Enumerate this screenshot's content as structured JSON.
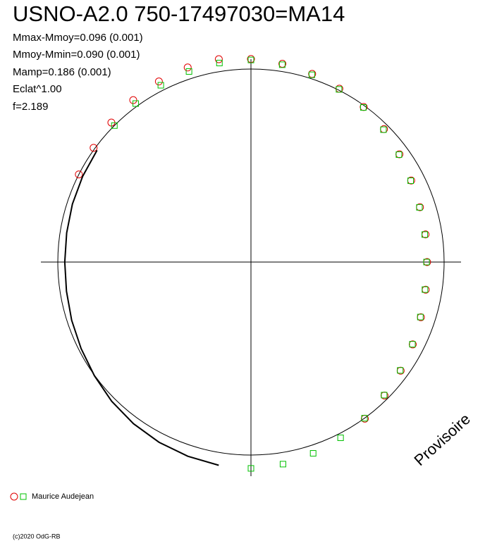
{
  "chart_data": {
    "type": "polar-phase",
    "title": "USNO-A2.0 750-17497030=MA14",
    "stats": [
      "Mmax-Mmoy=0.096 (0.001)",
      "Mmoy-Mmin=0.090 (0.001)",
      "Mamp=0.186 (0.001)",
      "Eclat^1.00",
      "f=2.189"
    ],
    "annotation": "Provisoire",
    "legend": "Maurice Audejean",
    "footer": "(c)2020 OdG-RB",
    "series": [
      {
        "marker": "circle",
        "color": "#e00000",
        "x": [
          0,
          0.025,
          0.05,
          0.075,
          0.1,
          0.125,
          0.15,
          0.175,
          0.2,
          0.225,
          0.25,
          0.275,
          0.3,
          0.325,
          0.35,
          0.375,
          0.4,
          0.825,
          0.85,
          0.875,
          0.9,
          0.925,
          0.95,
          0.975
        ],
        "values": [
          1.052,
          1.04,
          1.025,
          1.008,
          0.993,
          0.974,
          0.95,
          0.931,
          0.92,
          0.915,
          0.912,
          0.916,
          0.925,
          0.94,
          0.958,
          0.978,
          1.003,
          1.0,
          1.007,
          1.022,
          1.037,
          1.05,
          1.06,
          1.064
        ]
      },
      {
        "marker": "square",
        "color": "#00c000",
        "x": [
          0,
          0.025,
          0.05,
          0.075,
          0.1,
          0.125,
          0.15,
          0.175,
          0.2,
          0.225,
          0.25,
          0.275,
          0.3,
          0.325,
          0.35,
          0.375,
          0.4,
          0.425,
          0.45,
          0.475,
          0.5,
          0.875,
          0.9,
          0.925,
          0.95,
          0.975
        ],
        "values": [
          1.047,
          1.035,
          1.02,
          1.004,
          0.99,
          0.97,
          0.947,
          0.928,
          0.917,
          0.911,
          0.909,
          0.912,
          0.922,
          0.938,
          0.955,
          0.975,
          1.0,
          1.022,
          1.042,
          1.06,
          1.069,
          1.0,
          1.015,
          1.028,
          1.038,
          1.044
        ]
      },
      {
        "marker": "line",
        "color": "#000000",
        "x": [
          0.525,
          0.55,
          0.575,
          0.6,
          0.625,
          0.65,
          0.675,
          0.7,
          0.725,
          0.75,
          0.775,
          0.8,
          0.825,
          0.85
        ],
        "values": [
          1.066,
          1.058,
          1.048,
          1.035,
          1.02,
          1.002,
          0.987,
          0.976,
          0.967,
          0.964,
          0.966,
          0.972,
          0.978,
          0.985
        ]
      }
    ]
  }
}
